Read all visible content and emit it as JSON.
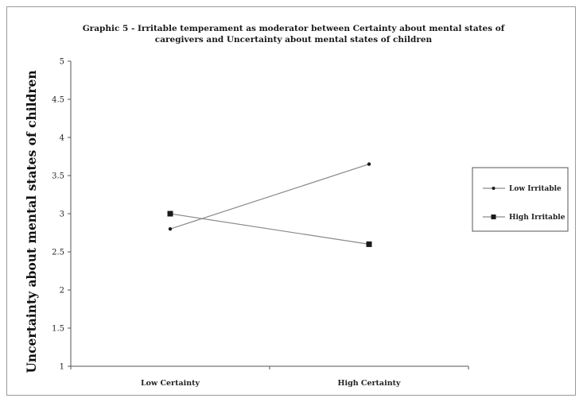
{
  "chart_data": {
    "type": "line",
    "title": [
      "Graphic 5 - Irritable temperament as moderator between Certainty about mental states of",
      "caregivers and Uncertainty about mental states of children"
    ],
    "xlabel": "",
    "ylabel": "Uncertainty about mental states of children",
    "categories": [
      "Low Certainty",
      "High Certainty"
    ],
    "ylim": [
      1,
      5
    ],
    "yticks": [
      "1",
      "1.5",
      "2",
      "2.5",
      "3",
      "3.5",
      "4",
      "4.5",
      "5"
    ],
    "grid": false,
    "legend_position": "right",
    "series": [
      {
        "name": "Low Irritable",
        "values": [
          2.8,
          3.65
        ],
        "marker": "dot",
        "color": "#1a1a1a",
        "line_color": "#8a8a8a"
      },
      {
        "name": "High Irritable",
        "values": [
          3.0,
          2.6
        ],
        "marker": "square",
        "color": "#1a1a1a",
        "line_color": "#8a8a8a"
      }
    ]
  }
}
